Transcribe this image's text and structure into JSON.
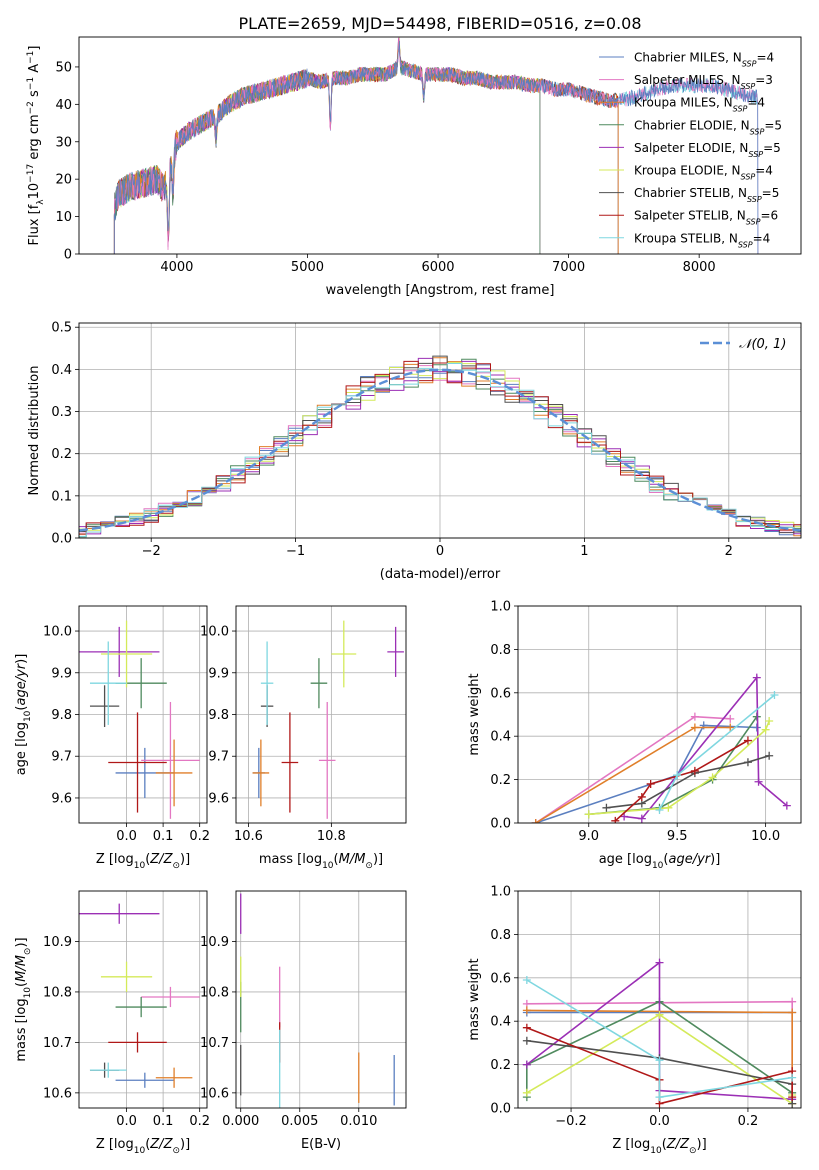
{
  "figure": {
    "title": "PLATE=2659, MJD=54498, FIBERID=0516, z=0.08"
  },
  "colors": {
    "Chabrier MILES": "#5b7fc0",
    "Salpeter MILES": "#e377c2",
    "Kroupa MILES": "#e07f2a",
    "Chabrier ELODIE": "#4f8a5e",
    "Salpeter ELODIE": "#9b2fb5",
    "Kroupa ELODIE": "#d4ea5a",
    "Chabrier STELIB": "#505050",
    "Salpeter STELIB": "#b01818",
    "Kroupa STELIB": "#7fd7e0",
    "normal": "#5b8fd6"
  },
  "chart_data": [
    {
      "id": "spectrum",
      "type": "line",
      "xlabel": "wavelength [Angstrom, rest frame]",
      "ylabel": "Flux [fλ10⁻¹⁷ erg cm⁻² s⁻¹ A⁻¹]",
      "xlim": [
        3250,
        8780
      ],
      "ylim": [
        0,
        58
      ],
      "xticks": [
        4000,
        5000,
        6000,
        7000,
        8000
      ],
      "yticks": [
        0,
        10,
        20,
        30,
        40,
        50
      ],
      "grid": false,
      "legend_position": "top-right",
      "legend": [
        "Chabrier MILES, N_SSP=4",
        "Salpeter MILES, N_SSP=3",
        "Kroupa MILES, N_SSP=4",
        "Chabrier ELODIE, N_SSP=5",
        "Salpeter ELODIE, N_SSP=5",
        "Kroupa ELODIE, N_SSP=4",
        "Chabrier STELIB, N_SSP=5",
        "Salpeter STELIB, N_SSP=6",
        "Kroupa STELIB, N_SSP=4"
      ],
      "legend_display": [
        [
          "Chabrier MILES, N",
          "SSP",
          "=4"
        ],
        [
          "Salpeter MILES, N",
          "SSP",
          "=3"
        ],
        [
          "Kroupa MILES, N",
          "SSP",
          "=4"
        ],
        [
          "Chabrier ELODIE, N",
          "SSP",
          "=5"
        ],
        [
          "Salpeter ELODIE, N",
          "SSP",
          "=5"
        ],
        [
          "Kroupa ELODIE, N",
          "SSP",
          "=4"
        ],
        [
          "Chabrier STELIB, N",
          "SSP",
          "=5"
        ],
        [
          "Salpeter STELIB, N",
          "SSP",
          "=6"
        ],
        [
          "Kroupa STELIB, N",
          "SSP",
          "=4"
        ]
      ],
      "continuum": {
        "x": [
          3520,
          3550,
          3650,
          3750,
          3850,
          3900,
          3950,
          4000,
          4100,
          4200,
          4300,
          4400,
          4500,
          4600,
          4700,
          4800,
          4900,
          5000,
          5100,
          5200,
          5300,
          5400,
          5500,
          5600,
          5700,
          5800,
          5900,
          6000,
          6100,
          6200,
          6300,
          6400,
          6500,
          6600,
          6700,
          6800,
          6900,
          7000,
          7100,
          7200,
          7300,
          7400,
          7500,
          7600,
          7700,
          7800,
          7900,
          8000,
          8100,
          8200,
          8300,
          8400,
          8500
        ],
        "y": [
          12,
          16,
          18,
          19,
          20,
          17,
          24,
          30,
          33,
          35,
          37,
          40,
          42,
          43,
          44,
          45,
          46,
          47,
          46,
          47,
          47,
          48,
          48,
          48,
          50,
          49,
          48,
          48,
          48,
          47,
          47,
          46,
          46,
          46,
          45,
          45,
          44,
          44,
          43,
          42,
          41,
          41,
          42,
          43,
          44,
          45,
          45,
          45,
          45,
          44,
          43,
          42,
          42
        ]
      },
      "range_by_model": {
        "Chabrier MILES": [
          3520,
          8450
        ],
        "Salpeter MILES": [
          3520,
          8450
        ],
        "Kroupa MILES": [
          3520,
          7380
        ],
        "Chabrier ELODIE": [
          3520,
          6780
        ],
        "Salpeter ELODIE": [
          3520,
          6780
        ],
        "Kroupa ELODIE": [
          3520,
          6780
        ],
        "Chabrier STELIB": [
          3520,
          7380
        ],
        "Salpeter STELIB": [
          3520,
          7380
        ],
        "Kroupa STELIB": [
          3520,
          8450
        ]
      },
      "features": [
        {
          "x": 3934,
          "dy": -18
        },
        {
          "x": 3969,
          "dy": -10
        },
        {
          "x": 4300,
          "dy": -6
        },
        {
          "x": 5175,
          "dy": -12
        },
        {
          "x": 5890,
          "dy": -6
        },
        {
          "x": 5700,
          "dy": 7
        }
      ]
    },
    {
      "id": "residuals",
      "type": "histogram",
      "xlabel": "(data-model)/error",
      "ylabel": "Normed distribution",
      "xlim": [
        -2.5,
        2.5
      ],
      "ylim": [
        0,
        0.51
      ],
      "xticks": [
        -2,
        -1,
        0,
        1,
        2
      ],
      "yticks": [
        0.0,
        0.1,
        0.2,
        0.3,
        0.4,
        0.5
      ],
      "grid": true,
      "legend_position": "top-right",
      "legend": [
        "𝒩(0, 1)"
      ],
      "bin_width": 0.1,
      "normal_curve": {
        "mean": 0,
        "sigma": 1
      }
    },
    {
      "id": "age-vs-Z",
      "type": "scatter",
      "xlabel": "Z [log10(Z/Z⊙)]",
      "ylabel": "age  [log10(age/yr)]",
      "xlim": [
        -0.13,
        0.22
      ],
      "ylim": [
        9.54,
        10.06
      ],
      "xticks": [
        0.0,
        0.1,
        0.2
      ],
      "yticks": [
        9.6,
        9.7,
        9.8,
        9.9,
        10.0
      ],
      "grid": true
    },
    {
      "id": "age-vs-mass",
      "type": "scatter",
      "xlabel": "mass [log10(M/M⊙)]",
      "ylabel": "",
      "xlim": [
        10.57,
        10.98
      ],
      "ylim": [
        9.54,
        10.06
      ],
      "xticks": [
        10.6,
        10.8
      ],
      "yticks": [
        9.6,
        9.7,
        9.8,
        9.9,
        10.0
      ],
      "grid": true
    },
    {
      "id": "weight-vs-age",
      "type": "line",
      "xlabel": "age  [log10(age/yr)]",
      "ylabel": "mass weight",
      "xlim": [
        8.6,
        10.2
      ],
      "ylim": [
        0,
        1.0
      ],
      "xticks": [
        9.0,
        9.5,
        10.0
      ],
      "yticks": [
        0.0,
        0.2,
        0.4,
        0.6,
        0.8,
        1.0
      ],
      "grid": true,
      "series": [
        {
          "model": "Chabrier MILES",
          "x": [
            8.7,
            9.5,
            9.65,
            9.95
          ],
          "y": [
            0.0,
            0.22,
            0.45,
            0.44
          ]
        },
        {
          "model": "Salpeter MILES",
          "x": [
            8.7,
            9.6,
            9.8
          ],
          "y": [
            0.0,
            0.49,
            0.48
          ]
        },
        {
          "model": "Kroupa MILES",
          "x": [
            8.7,
            9.6,
            9.8
          ],
          "y": [
            0.0,
            0.44,
            0.44
          ]
        },
        {
          "model": "Chabrier ELODIE",
          "x": [
            9.0,
            9.4,
            9.7,
            9.95
          ],
          "y": [
            0.04,
            0.07,
            0.2,
            0.49
          ]
        },
        {
          "model": "Salpeter ELODIE",
          "x": [
            9.2,
            9.3,
            9.95,
            9.96,
            10.12
          ],
          "y": [
            0.03,
            0.02,
            0.67,
            0.19,
            0.08
          ]
        },
        {
          "model": "Kroupa ELODIE",
          "x": [
            9.0,
            9.45,
            9.7,
            10.0,
            10.02
          ],
          "y": [
            0.04,
            0.07,
            0.21,
            0.43,
            0.47
          ]
        },
        {
          "model": "Chabrier STELIB",
          "x": [
            9.1,
            9.3,
            9.6,
            9.9,
            10.02
          ],
          "y": [
            0.07,
            0.09,
            0.23,
            0.28,
            0.31
          ]
        },
        {
          "model": "Salpeter STELIB",
          "x": [
            9.15,
            9.3,
            9.35,
            9.6,
            9.9
          ],
          "y": [
            0.01,
            0.12,
            0.18,
            0.24,
            0.38
          ]
        },
        {
          "model": "Kroupa STELIB",
          "x": [
            9.4,
            9.5,
            10.05
          ],
          "y": [
            0.06,
            0.22,
            0.59
          ]
        }
      ]
    },
    {
      "id": "mass-vs-Z",
      "type": "scatter",
      "xlabel": "Z [log10(Z/Z⊙)]",
      "ylabel": "mass [log10(M/M⊙)]",
      "xlim": [
        -0.13,
        0.22
      ],
      "ylim": [
        10.57,
        11.0
      ],
      "xticks": [
        0.0,
        0.1,
        0.2
      ],
      "yticks": [
        10.6,
        10.7,
        10.8,
        10.9
      ],
      "grid": true
    },
    {
      "id": "mass-vs-ebv",
      "type": "scatter",
      "xlabel": "E(B-V)",
      "ylabel": "",
      "xlim": [
        -0.0004,
        0.014
      ],
      "ylim": [
        10.57,
        11.0
      ],
      "xticks": [
        0.0,
        0.005,
        0.01
      ],
      "xticklabels": [
        "0.000",
        "0.005",
        "0.010"
      ],
      "yticks": [
        10.6,
        10.7,
        10.8,
        10.9
      ],
      "grid": true
    },
    {
      "id": "weight-vs-Z",
      "type": "line",
      "xlabel": "Z [log10(Z/Z⊙)]",
      "ylabel": "mass weight",
      "xlim": [
        -0.32,
        0.32
      ],
      "ylim": [
        0,
        1.0
      ],
      "xticks": [
        -0.2,
        0.0,
        0.2
      ],
      "yticks": [
        0.0,
        0.2,
        0.4,
        0.6,
        0.8,
        1.0
      ],
      "grid": true,
      "series": [
        {
          "model": "Chabrier MILES",
          "x": [
            -0.3,
            0.0,
            0.3
          ],
          "y": [
            0.44,
            0.44,
            0.44
          ]
        },
        {
          "model": "Salpeter MILES",
          "x": [
            -0.3,
            0.3,
            0.3
          ],
          "y": [
            0.48,
            0.49,
            0.02
          ]
        },
        {
          "model": "Kroupa MILES",
          "x": [
            -0.3,
            0.3,
            0.3
          ],
          "y": [
            0.45,
            0.44,
            0.02
          ]
        },
        {
          "model": "Chabrier ELODIE",
          "x": [
            -0.3,
            -0.3,
            0.0,
            0.3
          ],
          "y": [
            0.05,
            0.2,
            0.49,
            0.07
          ]
        },
        {
          "model": "Salpeter ELODIE",
          "x": [
            -0.3,
            0.0,
            0.0,
            0.3
          ],
          "y": [
            0.2,
            0.67,
            0.08,
            0.04
          ]
        },
        {
          "model": "Kroupa ELODIE",
          "x": [
            -0.3,
            0.0,
            0.3,
            0.3
          ],
          "y": [
            0.07,
            0.43,
            0.02,
            0.06
          ]
        },
        {
          "model": "Chabrier STELIB",
          "x": [
            -0.3,
            0.0,
            0.3,
            0.3
          ],
          "y": [
            0.31,
            0.23,
            0.11,
            0.02
          ]
        },
        {
          "model": "Salpeter STELIB",
          "x": [
            -0.3,
            0.0,
            0.0,
            0.3,
            0.3
          ],
          "y": [
            0.37,
            0.13,
            0.02,
            0.17,
            0.05
          ]
        },
        {
          "model": "Kroupa STELIB",
          "x": [
            -0.3,
            0.0,
            0.0,
            0.3
          ],
          "y": [
            0.59,
            0.22,
            0.05,
            0.14
          ]
        }
      ]
    }
  ],
  "points": [
    {
      "model": "Chabrier MILES",
      "Z": 0.05,
      "Zerr": 0.08,
      "age": 9.66,
      "ageErr": 0.06,
      "mass": 10.625,
      "massErr": 0.015,
      "ebv": 0.013,
      "ebvErr": 0.0,
      "massEbvErr": 0.05
    },
    {
      "model": "Salpeter MILES",
      "Z": 0.12,
      "Zerr": 0.08,
      "age": 9.69,
      "ageErr": 0.14,
      "mass": 10.79,
      "massErr": 0.02,
      "ebv": 0.0033,
      "ebvErr": 0.0,
      "massEbvErr": 0.06
    },
    {
      "model": "Kroupa MILES",
      "Z": 0.13,
      "Zerr": 0.05,
      "age": 9.66,
      "ageErr": 0.08,
      "mass": 10.63,
      "massErr": 0.02,
      "ebv": 0.01,
      "ebvErr": 0.0,
      "massEbvErr": 0.05
    },
    {
      "model": "Chabrier ELODIE",
      "Z": 0.04,
      "Zerr": 0.07,
      "age": 9.875,
      "ageErr": 0.06,
      "mass": 10.77,
      "massErr": 0.02,
      "ebv": 0.0,
      "ebvErr": 0.0,
      "massEbvErr": 0.05
    },
    {
      "model": "Salpeter ELODIE",
      "Z": -0.02,
      "Zerr": 0.11,
      "age": 9.95,
      "ageErr": 0.06,
      "mass": 10.955,
      "massErr": 0.02,
      "ebv": 0.0,
      "ebvErr": 0.0,
      "massEbvErr": 0.04
    },
    {
      "model": "Kroupa ELODIE",
      "Z": 0.0,
      "Zerr": 0.07,
      "age": 9.945,
      "ageErr": 0.08,
      "mass": 10.83,
      "massErr": 0.03,
      "ebv": 0.0,
      "ebvErr": 0.0,
      "massEbvErr": 0.04
    },
    {
      "model": "Chabrier STELIB",
      "Z": -0.06,
      "Zerr": 0.04,
      "age": 9.82,
      "ageErr": 0.05,
      "mass": 10.645,
      "massErr": 0.015,
      "ebv": 0.0,
      "ebvErr": 0.0,
      "massEbvErr": 0.05
    },
    {
      "model": "Salpeter STELIB",
      "Z": 0.03,
      "Zerr": 0.08,
      "age": 9.685,
      "ageErr": 0.12,
      "mass": 10.7,
      "massErr": 0.02,
      "ebv": 0.0033,
      "ebvErr": 0.0,
      "massEbvErr": 0.04
    },
    {
      "model": "Kroupa STELIB",
      "Z": -0.05,
      "Zerr": 0.05,
      "age": 9.875,
      "ageErr": 0.1,
      "mass": 10.645,
      "massErr": 0.015,
      "ebv": 0.0033,
      "ebvErr": 0.0,
      "massEbvErr": 0.08
    }
  ]
}
